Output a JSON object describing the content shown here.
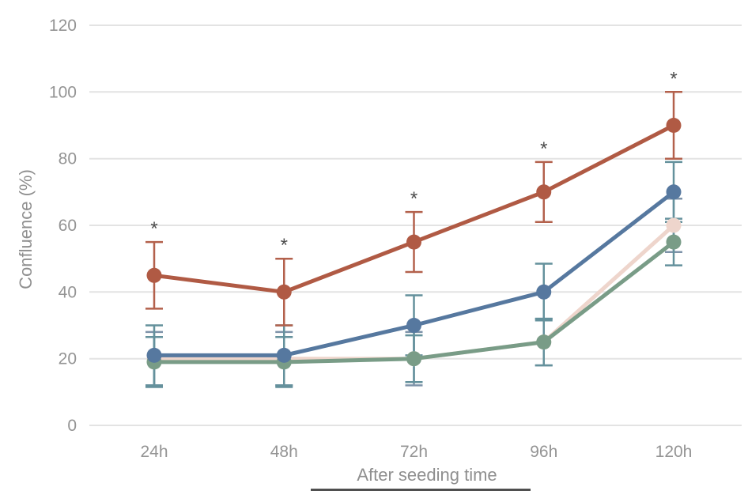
{
  "chart_data": {
    "type": "line",
    "title": "",
    "xlabel": "After seeding time",
    "ylabel": "Confluence (%)",
    "categories": [
      "24h",
      "48h",
      "72h",
      "96h",
      "120h"
    ],
    "y_ticks": [
      0,
      20,
      40,
      60,
      80,
      100,
      120
    ],
    "ylim": [
      0,
      120
    ],
    "grid": true,
    "legend_position": "none",
    "annotation_symbol": "*",
    "series": [
      {
        "id": "series-pink",
        "color": "#eed5cc",
        "error_color": "#7e93a9",
        "values": [
          20,
          20,
          20,
          25,
          60
        ],
        "errors": [
          8,
          8,
          8,
          7,
          8
        ]
      },
      {
        "id": "series-green",
        "color": "#799c87",
        "error_color": "#64919c",
        "values": [
          19,
          19,
          20,
          25,
          55
        ],
        "errors": [
          7.5,
          7.5,
          7,
          7,
          7
        ]
      },
      {
        "id": "series-blue",
        "color": "#56789f",
        "error_color": "#64919c",
        "values": [
          21,
          21,
          30,
          40,
          70
        ],
        "errors": [
          9,
          9,
          9,
          8.5,
          9
        ]
      },
      {
        "id": "series-red",
        "color": "#b05a44",
        "error_color": "#b3614c",
        "values": [
          45,
          40,
          55,
          70,
          90
        ],
        "errors": [
          10,
          10,
          9,
          9,
          10
        ],
        "significance": [
          "*",
          "*",
          "*",
          "*",
          "*"
        ]
      }
    ],
    "style": {
      "grid_color": "#e3e3e3",
      "tick_color": "#949494",
      "axis_title_color": "#8f8f8f",
      "annotation_color": "#4d4d4d",
      "background": "#ffffff"
    }
  }
}
